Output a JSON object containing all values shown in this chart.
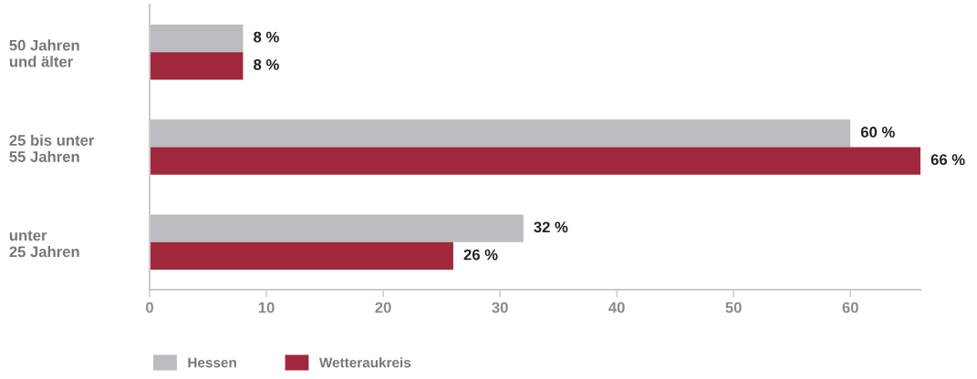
{
  "chart_data": {
    "type": "bar",
    "orientation": "horizontal",
    "categories": [
      "50 Jahren\nund älter",
      "25 bis unter\n55 Jahren",
      "unter\n25 Jahren"
    ],
    "series": [
      {
        "name": "Hessen",
        "color": "#bbbcc0",
        "values": [
          8,
          60,
          32
        ],
        "value_labels": [
          "8 %",
          "60 %",
          "32 %"
        ]
      },
      {
        "name": "Wetteraukreis",
        "color": "#a0283c",
        "values": [
          8,
          66,
          26
        ],
        "value_labels": [
          "8 %",
          "66 %",
          "26 %"
        ]
      }
    ],
    "xlim": [
      0,
      66
    ],
    "xticks": [
      0,
      10,
      20,
      30,
      40,
      50,
      60
    ],
    "grid": false,
    "legend": "bottom left"
  }
}
